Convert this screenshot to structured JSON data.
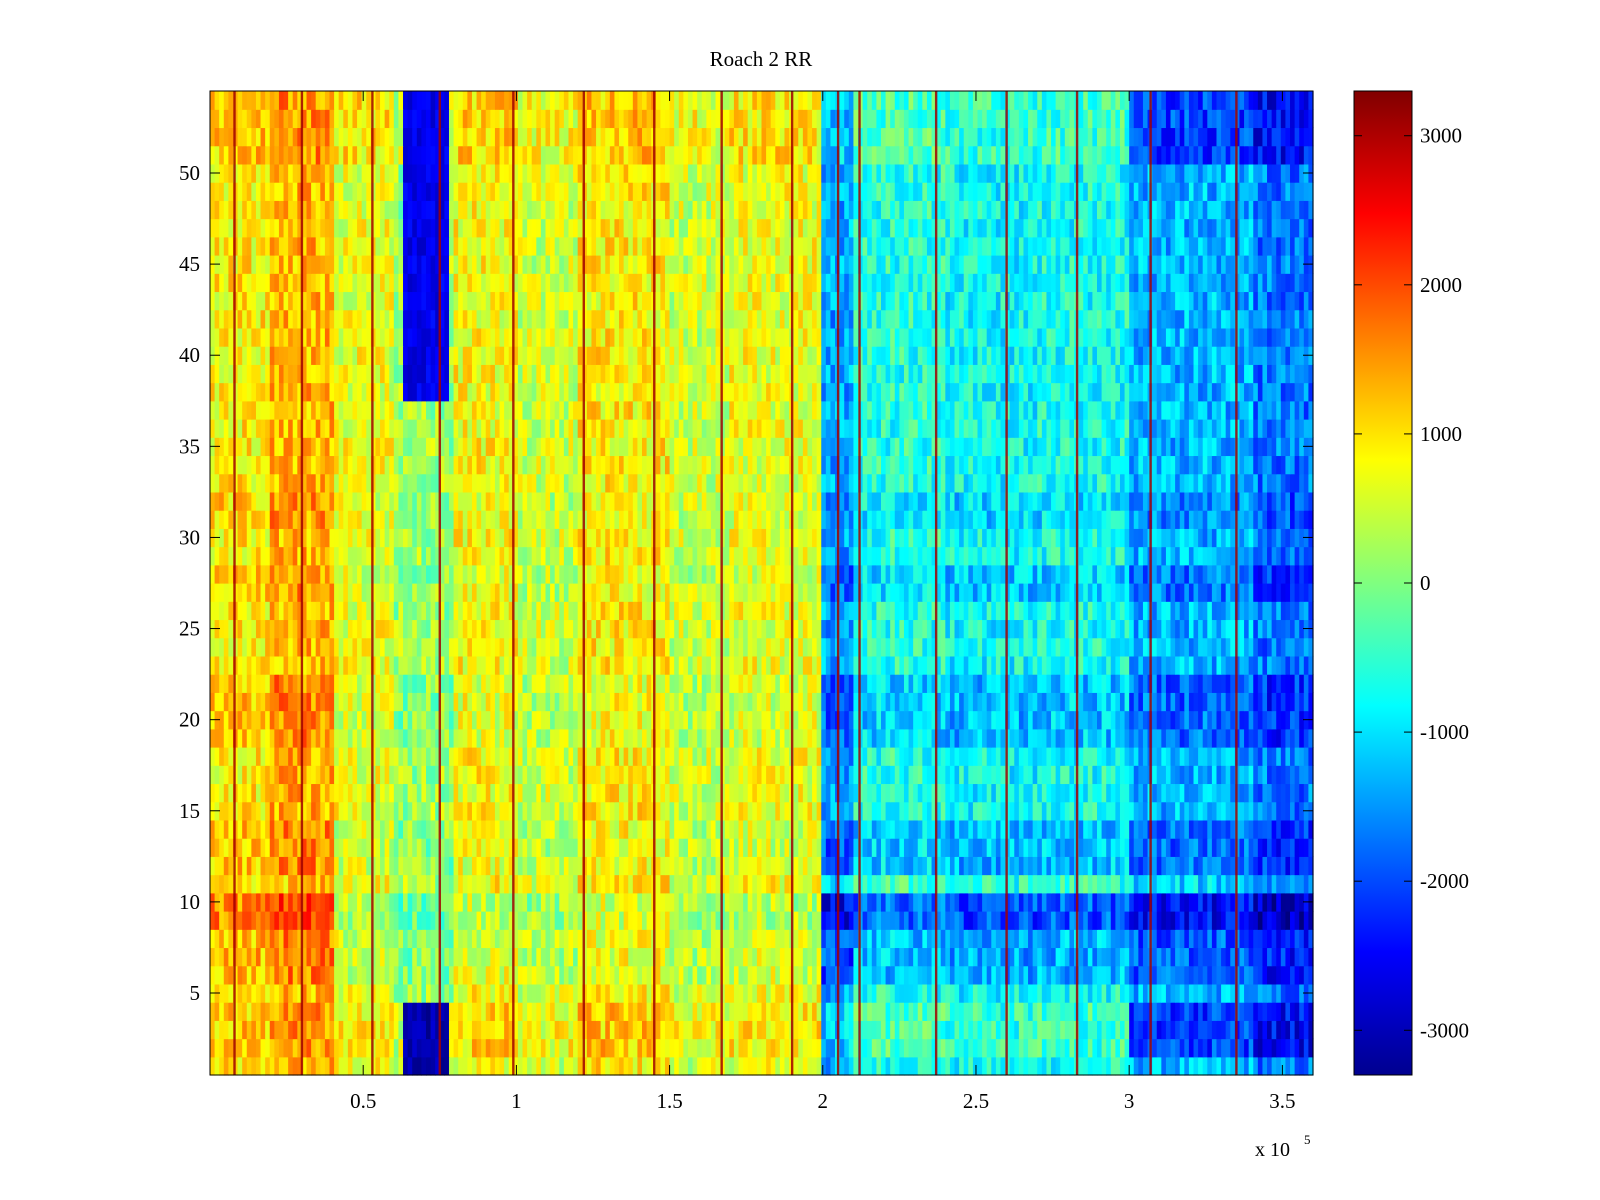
{
  "chart_data": {
    "type": "heatmap",
    "title": "Roach 2 RR",
    "xlabel": "",
    "ylabel": "",
    "x_multiplier_label": "x 10",
    "x_multiplier_exponent": "5",
    "xlim": [
      0,
      360000
    ],
    "ylim": [
      0.5,
      54.5
    ],
    "x_ticks": [
      0.5,
      1,
      1.5,
      2,
      2.5,
      3,
      3.5
    ],
    "x_tick_labels": [
      "0.5",
      "1",
      "1.5",
      "2",
      "2.5",
      "3",
      "3.5"
    ],
    "y_ticks": [
      5,
      10,
      15,
      20,
      25,
      30,
      35,
      40,
      45,
      50
    ],
    "y_tick_labels": [
      "5",
      "10",
      "15",
      "20",
      "25",
      "30",
      "35",
      "40",
      "45",
      "50"
    ],
    "rows": 54,
    "colorbar": {
      "colormap": "jet",
      "clim": [
        -3300,
        3300
      ],
      "ticks": [
        3000,
        2000,
        1000,
        0,
        -1000,
        -2000,
        -3000
      ],
      "tick_labels": [
        "3000",
        "2000",
        "1000",
        "0",
        "-1000",
        "-2000",
        "-3000"
      ]
    },
    "column_segments": [
      {
        "x_start": 0,
        "x_end": 20000,
        "mean": 900
      },
      {
        "x_start": 20000,
        "x_end": 40000,
        "mean": 1300
      },
      {
        "x_start": 40000,
        "x_end": 60000,
        "mean": 700
      },
      {
        "x_start": 60000,
        "x_end": 80000,
        "mean": 200
      },
      {
        "x_start": 80000,
        "x_end": 100000,
        "mean": 800
      },
      {
        "x_start": 100000,
        "x_end": 120000,
        "mean": 500
      },
      {
        "x_start": 120000,
        "x_end": 150000,
        "mean": 900
      },
      {
        "x_start": 150000,
        "x_end": 170000,
        "mean": 500
      },
      {
        "x_start": 170000,
        "x_end": 200000,
        "mean": 700
      },
      {
        "x_start": 200000,
        "x_end": 210000,
        "mean": -1400
      },
      {
        "x_start": 210000,
        "x_end": 240000,
        "mean": -600
      },
      {
        "x_start": 240000,
        "x_end": 270000,
        "mean": -800
      },
      {
        "x_start": 270000,
        "x_end": 300000,
        "mean": -700
      },
      {
        "x_start": 300000,
        "x_end": 340000,
        "mean": -1300
      },
      {
        "x_start": 340000,
        "x_end": 360000,
        "mean": -1700
      }
    ],
    "row_offsets": [
      {
        "rows": [
          1,
          2,
          3,
          4
        ],
        "offset": 0
      },
      {
        "rows": [
          6,
          7,
          8
        ],
        "offset": -600
      },
      {
        "rows": [
          9,
          10
        ],
        "offset": -1200
      },
      {
        "rows": [
          11
        ],
        "offset": 200
      },
      {
        "rows": [
          12,
          13,
          14
        ],
        "offset": -500
      },
      {
        "rows": [
          19,
          20,
          21,
          22
        ],
        "offset": -500
      },
      {
        "rows": [
          27,
          28
        ],
        "offset": -400
      },
      {
        "rows": [
          31,
          32
        ],
        "offset": -300
      },
      {
        "rows": [
          33,
          34,
          35,
          36,
          37
        ],
        "offset": 0
      }
    ],
    "dark_blob_regions": [
      {
        "x_start": 63000,
        "x_end": 78000,
        "y_start": 38,
        "y_end": 54,
        "value": -2600
      },
      {
        "x_start": 63000,
        "x_end": 78000,
        "y_start": 0.5,
        "y_end": 4,
        "value": -3000
      }
    ],
    "vertical_stripes_x": [
      8000,
      30000,
      53000,
      75000,
      99000,
      122000,
      145000,
      167000,
      190000,
      205000,
      212000,
      237000,
      260000,
      283000,
      307000,
      335000
    ]
  }
}
